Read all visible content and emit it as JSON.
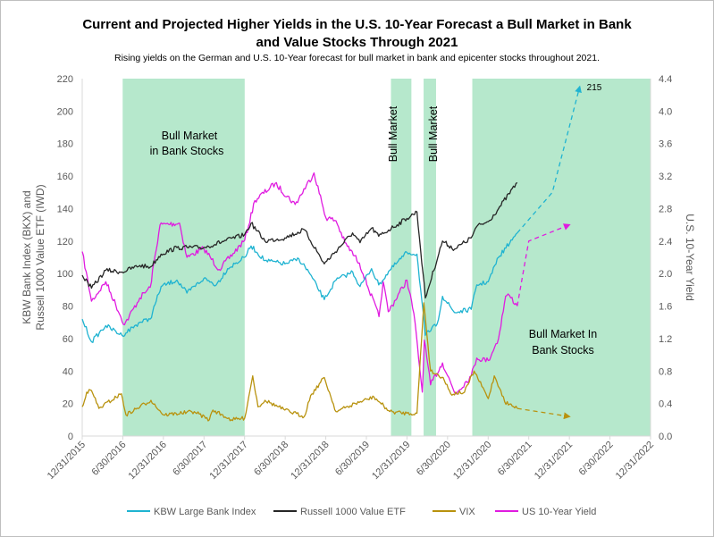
{
  "chart_data": {
    "type": "line",
    "title": "Current and Projected Higher Yields in the U.S. 10-Year Forecast a Bull Market in Bank",
    "title_line2": "and Value Stocks Through 2021",
    "subtitle": "Rising yields on the German and U.S. 10-Year forecast for bull market in bank and epicenter stocks throughout 2021.",
    "ylabel_left_line1": "KBW Bank Index (BKX) and",
    "ylabel_left_line2": "Russell 1000 Value ETF (IWD)",
    "ylabel_right": "U.S. 10-Year Yield",
    "x_ticks": [
      "12/31/2015",
      "6/30/2016",
      "12/31/2016",
      "6/30/2017",
      "12/31/2017",
      "6/30/2018",
      "12/31/2018",
      "6/30/2019",
      "12/31/2019",
      "6/30/2020",
      "12/31/2020",
      "6/30/2021",
      "12/31/2021",
      "6/30/2022",
      "12/31/2022"
    ],
    "ylim_left": [
      0,
      220
    ],
    "y_ticks_left": [
      "0",
      "20",
      "40",
      "60",
      "80",
      "100",
      "120",
      "140",
      "160",
      "180",
      "200",
      "220"
    ],
    "ylim_right": [
      0,
      4.4
    ],
    "y_ticks_right": [
      "0.0",
      "0.4",
      "0.8",
      "1.2",
      "1.6",
      "2.0",
      "2.4",
      "2.8",
      "3.2",
      "3.6",
      "4.0",
      "4.4"
    ],
    "grid": false,
    "legend_position": "bottom",
    "bull_markets": [
      {
        "start": "2016-06-30",
        "end": "2017-12-31",
        "label": "Bull Market in Bank Stocks",
        "label_line1": "Bull Market",
        "label_line2": "in Bank Stocks",
        "orientation": "horizontal"
      },
      {
        "start": "2019-10-20",
        "end": "2020-01-20",
        "label": "Bull Market",
        "orientation": "vertical"
      },
      {
        "start": "2020-03-15",
        "end": "2020-05-10",
        "label": "Bull Market",
        "orientation": "vertical"
      },
      {
        "start": "2020-10-20",
        "end": "2022-12-31",
        "label": "Bull Market In Bank Stocks",
        "label_line1": "Bull Market In",
        "label_line2": "Bank Stocks",
        "orientation": "horizontal"
      }
    ],
    "annotations": [
      {
        "text": "215",
        "x": "2022-02-15",
        "y": 215
      }
    ],
    "series": [
      {
        "name": "KBW Large Bank Index",
        "color": "#1fb3d1",
        "axis": "left",
        "points": [
          [
            "2015-12-31",
            72
          ],
          [
            "2016-02-11",
            58
          ],
          [
            "2016-04-15",
            68
          ],
          [
            "2016-06-27",
            62
          ],
          [
            "2016-09-15",
            70
          ],
          [
            "2016-11-01",
            72
          ],
          [
            "2016-12-20",
            92
          ],
          [
            "2017-03-01",
            96
          ],
          [
            "2017-04-15",
            88
          ],
          [
            "2017-06-30",
            97
          ],
          [
            "2017-08-25",
            93
          ],
          [
            "2017-10-15",
            103
          ],
          [
            "2017-12-31",
            110
          ],
          [
            "2018-01-29",
            117
          ],
          [
            "2018-04-01",
            108
          ],
          [
            "2018-06-30",
            106
          ],
          [
            "2018-09-01",
            109
          ],
          [
            "2018-10-15",
            101
          ],
          [
            "2018-12-24",
            84
          ],
          [
            "2019-02-15",
            96
          ],
          [
            "2019-05-01",
            101
          ],
          [
            "2019-06-03",
            92
          ],
          [
            "2019-07-25",
            103
          ],
          [
            "2019-08-26",
            93
          ],
          [
            "2019-10-15",
            102
          ],
          [
            "2019-12-31",
            113
          ],
          [
            "2020-02-14",
            112
          ],
          [
            "2020-03-23",
            62
          ],
          [
            "2020-05-15",
            69
          ],
          [
            "2020-06-08",
            86
          ],
          [
            "2020-08-01",
            76
          ],
          [
            "2020-10-15",
            78
          ],
          [
            "2020-11-09",
            93
          ],
          [
            "2020-12-31",
            95
          ],
          [
            "2021-02-15",
            110
          ],
          [
            "2021-05-10",
            125
          ]
        ]
      },
      {
        "name": "Russell 1000 Value ETF",
        "color": "#262626",
        "axis": "left",
        "points": [
          [
            "2015-12-31",
            99
          ],
          [
            "2016-02-11",
            91
          ],
          [
            "2016-04-15",
            102
          ],
          [
            "2016-06-27",
            101
          ],
          [
            "2016-09-15",
            105
          ],
          [
            "2016-11-01",
            104
          ],
          [
            "2016-12-20",
            112
          ],
          [
            "2017-03-01",
            116
          ],
          [
            "2017-06-30",
            116
          ],
          [
            "2017-12-31",
            124
          ],
          [
            "2018-01-29",
            131
          ],
          [
            "2018-04-01",
            120
          ],
          [
            "2018-06-30",
            122
          ],
          [
            "2018-09-25",
            127
          ],
          [
            "2018-12-24",
            106
          ],
          [
            "2019-04-30",
            125
          ],
          [
            "2019-06-03",
            119
          ],
          [
            "2019-07-25",
            128
          ],
          [
            "2019-08-26",
            123
          ],
          [
            "2019-12-31",
            134
          ],
          [
            "2020-02-14",
            138
          ],
          [
            "2020-03-23",
            85
          ],
          [
            "2020-06-08",
            120
          ],
          [
            "2020-08-01",
            115
          ],
          [
            "2020-10-15",
            122
          ],
          [
            "2020-11-09",
            129
          ],
          [
            "2020-12-31",
            132
          ],
          [
            "2021-02-15",
            140
          ],
          [
            "2021-05-10",
            156
          ]
        ]
      },
      {
        "name": "VIX",
        "color": "#b8920e",
        "axis": "left",
        "points": [
          [
            "2015-12-31",
            18
          ],
          [
            "2016-01-20",
            27
          ],
          [
            "2016-02-11",
            28
          ],
          [
            "2016-03-15",
            17
          ],
          [
            "2016-06-24",
            26
          ],
          [
            "2016-07-15",
            13
          ],
          [
            "2016-11-04",
            22
          ],
          [
            "2016-12-31",
            13
          ],
          [
            "2017-05-18",
            15
          ],
          [
            "2017-07-25",
            10
          ],
          [
            "2017-08-10",
            16
          ],
          [
            "2017-11-01",
            10
          ],
          [
            "2017-12-31",
            11
          ],
          [
            "2018-02-05",
            37
          ],
          [
            "2018-03-01",
            18
          ],
          [
            "2018-04-01",
            22
          ],
          [
            "2018-06-30",
            16
          ],
          [
            "2018-09-25",
            12
          ],
          [
            "2018-10-24",
            25
          ],
          [
            "2018-12-24",
            36
          ],
          [
            "2019-02-15",
            15
          ],
          [
            "2019-05-13",
            20
          ],
          [
            "2019-08-05",
            24
          ],
          [
            "2019-10-15",
            15
          ],
          [
            "2019-12-31",
            14
          ],
          [
            "2020-02-14",
            14
          ],
          [
            "2020-03-16",
            82
          ],
          [
            "2020-04-15",
            40
          ],
          [
            "2020-06-11",
            36
          ],
          [
            "2020-07-15",
            26
          ],
          [
            "2020-09-15",
            27
          ],
          [
            "2020-10-28",
            40
          ],
          [
            "2020-12-31",
            23
          ],
          [
            "2021-01-27",
            37
          ],
          [
            "2021-02-25",
            28
          ],
          [
            "2021-03-15",
            21
          ],
          [
            "2021-05-10",
            17
          ]
        ]
      },
      {
        "name": "US 10-Year Yield",
        "color": "#e01be0",
        "axis": "right",
        "points": [
          [
            "2015-12-31",
            2.27
          ],
          [
            "2016-02-11",
            1.66
          ],
          [
            "2016-04-15",
            1.9
          ],
          [
            "2016-07-08",
            1.37
          ],
          [
            "2016-09-15",
            1.7
          ],
          [
            "2016-11-01",
            1.83
          ],
          [
            "2016-12-15",
            2.6
          ],
          [
            "2017-03-13",
            2.62
          ],
          [
            "2017-04-15",
            2.2
          ],
          [
            "2017-06-30",
            2.31
          ],
          [
            "2017-09-07",
            2.05
          ],
          [
            "2017-12-31",
            2.41
          ],
          [
            "2018-02-15",
            2.9
          ],
          [
            "2018-05-17",
            3.11
          ],
          [
            "2018-08-15",
            2.85
          ],
          [
            "2018-11-08",
            3.24
          ],
          [
            "2018-12-31",
            2.69
          ],
          [
            "2019-02-15",
            2.65
          ],
          [
            "2019-03-27",
            2.38
          ],
          [
            "2019-05-31",
            2.13
          ],
          [
            "2019-08-27",
            1.47
          ],
          [
            "2019-09-15",
            1.9
          ],
          [
            "2019-10-08",
            1.53
          ],
          [
            "2019-12-31",
            1.92
          ],
          [
            "2020-01-31",
            1.51
          ],
          [
            "2020-03-09",
            0.54
          ],
          [
            "2020-03-18",
            1.18
          ],
          [
            "2020-04-15",
            0.63
          ],
          [
            "2020-06-08",
            0.9
          ],
          [
            "2020-08-04",
            0.52
          ],
          [
            "2020-10-15",
            0.74
          ],
          [
            "2020-11-09",
            0.96
          ],
          [
            "2020-12-31",
            0.93
          ],
          [
            "2021-02-15",
            1.2
          ],
          [
            "2021-03-19",
            1.72
          ],
          [
            "2021-04-05",
            1.73
          ],
          [
            "2021-05-10",
            1.6
          ]
        ]
      }
    ],
    "projections": [
      {
        "name": "KBW Large Bank Index",
        "color": "#1fb3d1",
        "axis": "left",
        "points": [
          [
            "2021-05-10",
            125
          ],
          [
            "2021-10-15",
            150
          ],
          [
            "2022-02-15",
            215
          ]
        ]
      },
      {
        "name": "US 10-Year Yield",
        "color": "#e01be0",
        "axis": "right",
        "points": [
          [
            "2021-05-10",
            1.6
          ],
          [
            "2021-07-01",
            2.4
          ],
          [
            "2021-12-31",
            2.6
          ]
        ]
      },
      {
        "name": "VIX",
        "color": "#b8920e",
        "axis": "left",
        "points": [
          [
            "2021-05-10",
            17
          ],
          [
            "2021-12-31",
            12
          ]
        ]
      }
    ]
  },
  "colors": {
    "shade": "#b6e8cc",
    "axis": "#d9d9d9",
    "tick_text": "#595959"
  }
}
